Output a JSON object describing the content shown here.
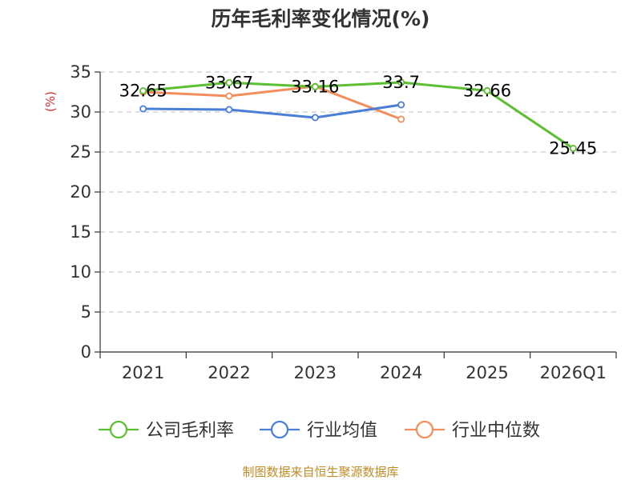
{
  "chart_data": {
    "type": "line",
    "title": "历年毛利率变化情况(%)",
    "ylabel": "(%)",
    "xlabel": "",
    "categories": [
      "2021",
      "2022",
      "2023",
      "2024",
      "2025",
      "2026Q1"
    ],
    "ylim": [
      0,
      35
    ],
    "yticks": [
      0,
      5,
      10,
      15,
      20,
      25,
      30,
      35
    ],
    "grid": true,
    "legend_position": "bottom",
    "series": [
      {
        "name": "公司毛利率",
        "color": "#5ac030",
        "values": [
          32.65,
          33.67,
          33.16,
          33.7,
          32.66,
          25.45
        ],
        "show_labels": true
      },
      {
        "name": "行业均值",
        "color": "#4a7fd8",
        "values": [
          30.4,
          30.3,
          29.3,
          30.9,
          null,
          null
        ],
        "show_labels": false
      },
      {
        "name": "行业中位数",
        "color": "#f48d5c",
        "values": [
          32.5,
          32.0,
          33.2,
          29.1,
          null,
          null
        ],
        "show_labels": false
      }
    ],
    "ylabel_color": "#d32f2f"
  },
  "source": "制图数据来自恒生聚源数据库"
}
